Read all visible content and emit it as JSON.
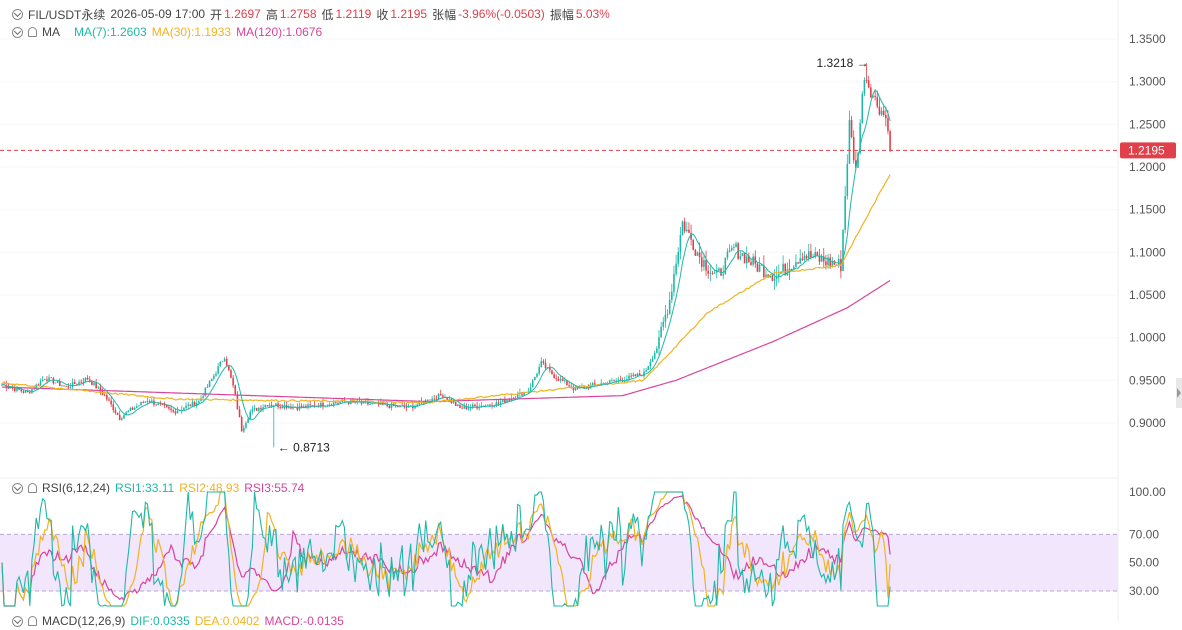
{
  "header": {
    "symbol": "FIL/USDT永续",
    "datetime": "2026-05-09 17:00",
    "open_label": "开",
    "open": "1.2697",
    "high_label": "高",
    "high": "1.2758",
    "low_label": "低",
    "low": "1.2119",
    "close_label": "收",
    "close": "1.2195",
    "change_label": "张幅",
    "change": "-3.96%(-0.0503)",
    "amp_label": "振幅",
    "amp": "5.03%"
  },
  "ma_legend": {
    "name": "MA",
    "ma7": "MA(7):1.2603",
    "ma30": "MA(30):1.1933",
    "ma120": "MA(120):1.0676"
  },
  "rsi_legend": {
    "name": "RSI(6,12,24)",
    "rsi1": "RSI1:33.11",
    "rsi2": "RSI2:48.93",
    "rsi3": "RSI3:55.74"
  },
  "macd_legend": {
    "name": "MACD(12,26,9)",
    "dif": "DIF:0.0335",
    "dea": "DEA:0.0402",
    "macd": "MACD:-0.0135"
  },
  "colors": {
    "up": "#1fb8a8",
    "down": "#e0404a",
    "ma7": "#1fb8a8",
    "ma30": "#f0b323",
    "ma120": "#d8449c",
    "rsi_band": "#f1e6fb"
  },
  "chart_data": [
    {
      "type": "candlestick",
      "title": "FIL/USDT永续",
      "y_ticks": [
        "1.3500",
        "1.3000",
        "1.2500",
        "1.2000",
        "1.1500",
        "1.1000",
        "1.0500",
        "1.0000",
        "0.9500",
        "0.9000"
      ],
      "ylim": [
        0.853,
        1.363
      ],
      "last_price": "1.2195",
      "high_annotation": "1.3218",
      "low_annotation": "0.8713",
      "anchors": [
        {
          "i": 0,
          "v": 0.945
        },
        {
          "i": 12,
          "v": 0.935
        },
        {
          "i": 20,
          "v": 0.953
        },
        {
          "i": 30,
          "v": 0.942
        },
        {
          "i": 40,
          "v": 0.952
        },
        {
          "i": 48,
          "v": 0.932
        },
        {
          "i": 55,
          "v": 0.906
        },
        {
          "i": 60,
          "v": 0.915
        },
        {
          "i": 68,
          "v": 0.927
        },
        {
          "i": 80,
          "v": 0.913
        },
        {
          "i": 92,
          "v": 0.925
        },
        {
          "i": 100,
          "v": 0.96
        },
        {
          "i": 104,
          "v": 0.978
        },
        {
          "i": 108,
          "v": 0.943
        },
        {
          "i": 112,
          "v": 0.892
        },
        {
          "i": 116,
          "v": 0.913
        },
        {
          "i": 124,
          "v": 0.922
        },
        {
          "i": 140,
          "v": 0.918
        },
        {
          "i": 160,
          "v": 0.925
        },
        {
          "i": 176,
          "v": 0.921
        },
        {
          "i": 190,
          "v": 0.918
        },
        {
          "i": 206,
          "v": 0.933
        },
        {
          "i": 214,
          "v": 0.917
        },
        {
          "i": 232,
          "v": 0.923
        },
        {
          "i": 246,
          "v": 0.938
        },
        {
          "i": 252,
          "v": 0.97
        },
        {
          "i": 258,
          "v": 0.955
        },
        {
          "i": 268,
          "v": 0.939
        },
        {
          "i": 278,
          "v": 0.945
        },
        {
          "i": 292,
          "v": 0.952
        },
        {
          "i": 300,
          "v": 0.958
        },
        {
          "i": 306,
          "v": 0.988
        },
        {
          "i": 312,
          "v": 1.045
        },
        {
          "i": 318,
          "v": 1.135
        },
        {
          "i": 326,
          "v": 1.095
        },
        {
          "i": 334,
          "v": 1.07
        },
        {
          "i": 342,
          "v": 1.105
        },
        {
          "i": 352,
          "v": 1.085
        },
        {
          "i": 362,
          "v": 1.072
        },
        {
          "i": 374,
          "v": 1.098
        },
        {
          "i": 384,
          "v": 1.09
        },
        {
          "i": 392,
          "v": 1.085
        },
        {
          "i": 396,
          "v": 1.25
        },
        {
          "i": 399,
          "v": 1.195
        },
        {
          "i": 403,
          "v": 1.31
        },
        {
          "i": 408,
          "v": 1.278
        },
        {
          "i": 412,
          "v": 1.262
        },
        {
          "i": 415,
          "v": 1.245
        }
      ],
      "ma_anchors": {
        "ma30": [
          {
            "i": 0,
            "v": 0.947
          },
          {
            "i": 80,
            "v": 0.928
          },
          {
            "i": 200,
            "v": 0.924
          },
          {
            "i": 300,
            "v": 0.95
          },
          {
            "i": 330,
            "v": 1.03
          },
          {
            "i": 360,
            "v": 1.075
          },
          {
            "i": 392,
            "v": 1.085
          },
          {
            "i": 415,
            "v": 1.192
          }
        ],
        "ma120": [
          {
            "i": 0,
            "v": 0.942
          },
          {
            "i": 200,
            "v": 0.925
          },
          {
            "i": 290,
            "v": 0.932
          },
          {
            "i": 315,
            "v": 0.95
          },
          {
            "i": 360,
            "v": 0.995
          },
          {
            "i": 395,
            "v": 1.035
          },
          {
            "i": 415,
            "v": 1.067
          }
        ]
      }
    },
    {
      "type": "line",
      "title": "RSI(6,12,24)",
      "y_ticks": [
        "100.00",
        "70.00",
        "50.00",
        "30.00"
      ],
      "band": [
        30,
        70
      ],
      "series": [
        {
          "name": "RSI1",
          "last": 33.11
        },
        {
          "name": "RSI2",
          "last": 48.93
        },
        {
          "name": "RSI3",
          "last": 55.74
        }
      ]
    }
  ]
}
